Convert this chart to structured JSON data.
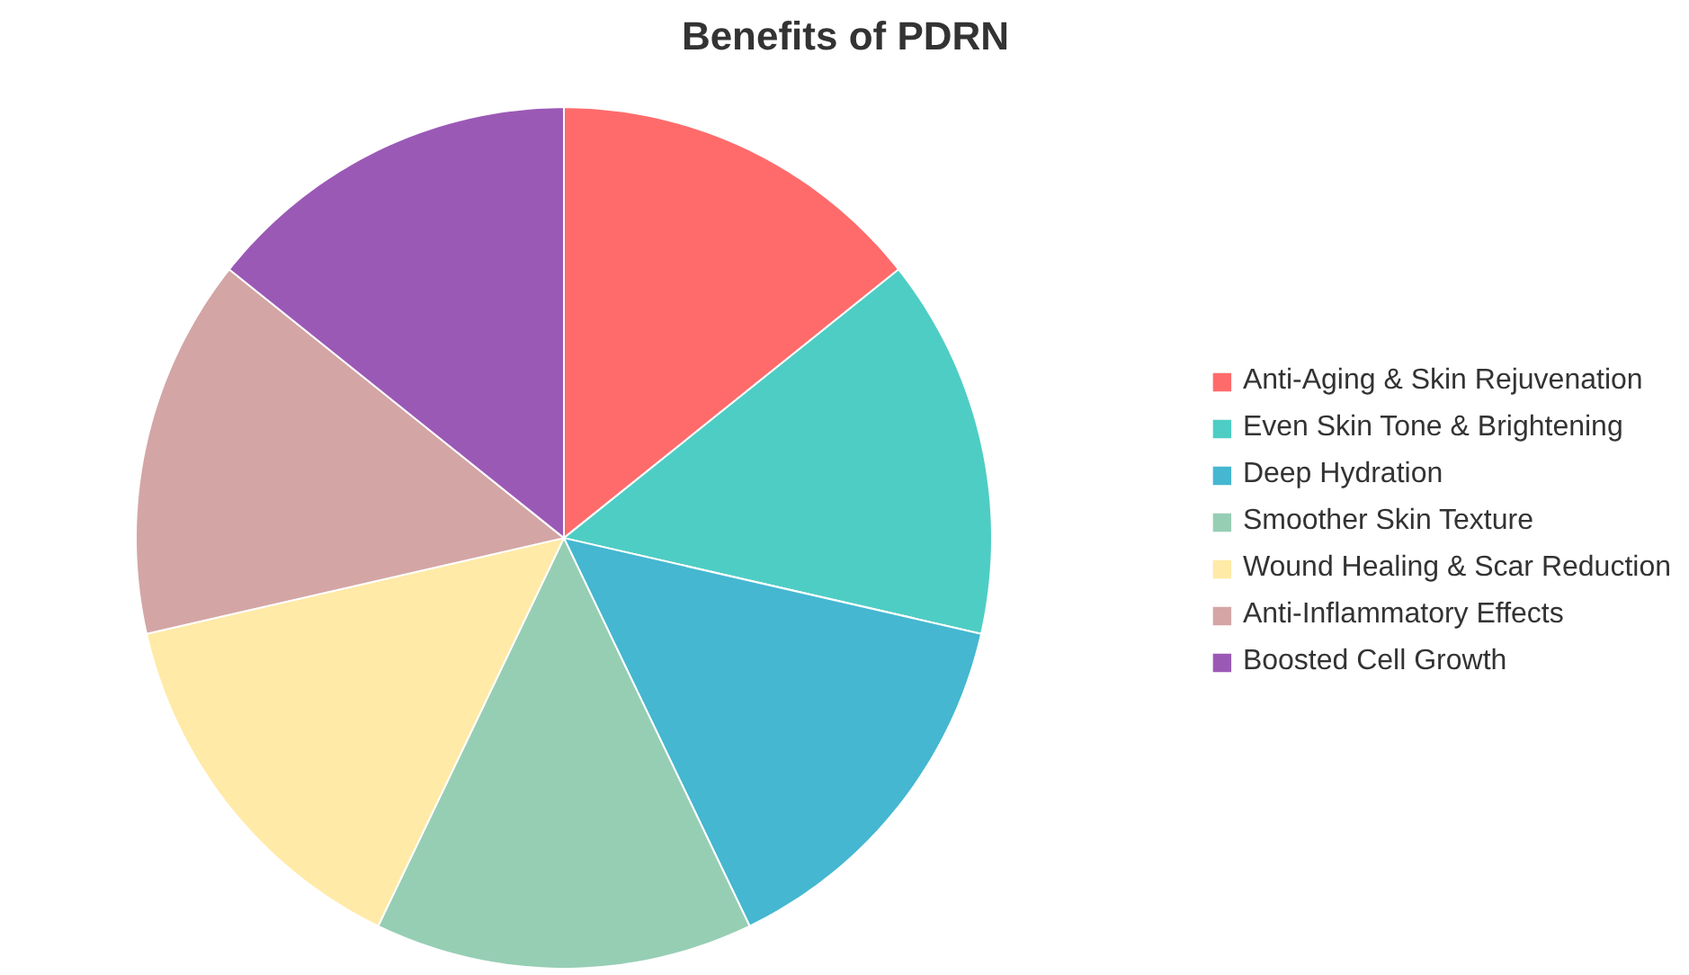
{
  "chart_data": {
    "type": "pie",
    "title": "Benefits of PDRN",
    "categories": [
      "Anti-Aging & Skin Rejuvenation",
      "Even Skin Tone & Brightening",
      "Deep Hydration",
      "Smoother Skin Texture",
      "Wound Healing & Scar Reduction",
      "Anti-Inflammatory Effects",
      "Boosted Cell Growth"
    ],
    "values": [
      14.2857,
      14.2857,
      14.2857,
      14.2857,
      14.2857,
      14.2857,
      14.2857
    ],
    "colors": [
      "#ff6b6b",
      "#4ecdc4",
      "#45b7d1",
      "#96ceb4",
      "#ffeaa7",
      "#d4a5a5",
      "#9b59b6"
    ],
    "legend": "right"
  }
}
